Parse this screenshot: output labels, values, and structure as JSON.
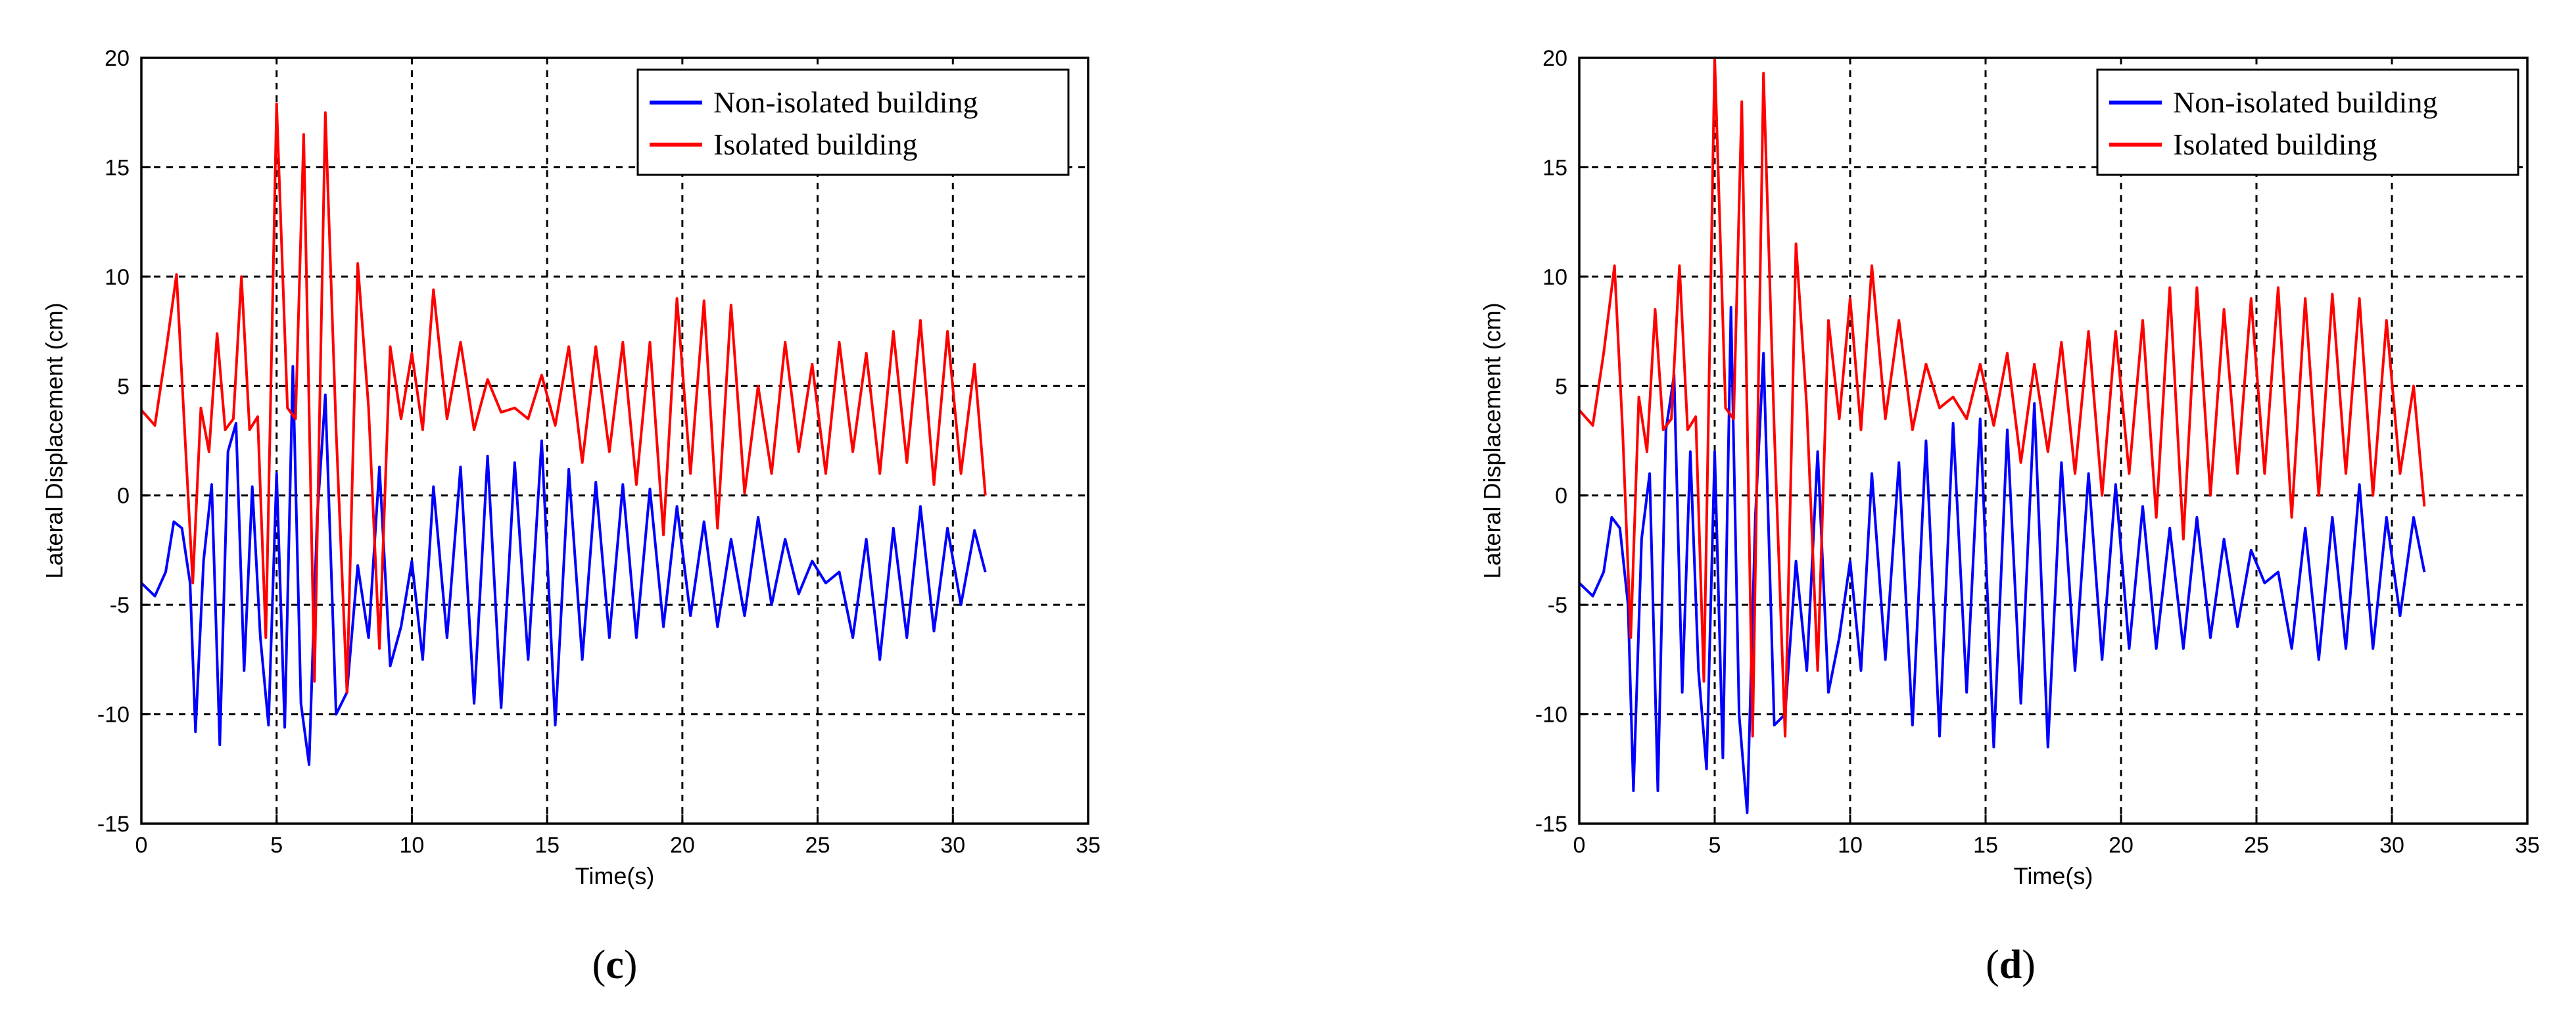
{
  "chart_data": [
    {
      "type": "line",
      "panel_label": {
        "open": "(",
        "letter": "c",
        "close": ")"
      },
      "xlabel": "Time(s)",
      "ylabel": "Lateral Displacement (cm)",
      "xlim": [
        0,
        35
      ],
      "ylim": [
        -15,
        20
      ],
      "xticks": [
        0,
        5,
        10,
        15,
        20,
        25,
        30,
        35
      ],
      "yticks": [
        -15,
        -10,
        -5,
        0,
        5,
        10,
        15,
        20
      ],
      "grid": true,
      "legend_position": "top-right",
      "colors": {
        "non_isolated": "#0000ff",
        "isolated": "#ff0000"
      },
      "series": [
        {
          "name": "Non-isolated building",
          "color": "#0000ff",
          "x": [
            0,
            0.5,
            0.9,
            1.2,
            1.5,
            1.8,
            2.0,
            2.3,
            2.6,
            2.9,
            3.2,
            3.5,
            3.8,
            4.1,
            4.4,
            4.7,
            5.0,
            5.3,
            5.6,
            5.9,
            6.2,
            6.5,
            6.8,
            7.2,
            7.6,
            8.0,
            8.4,
            8.8,
            9.2,
            9.6,
            10.0,
            10.4,
            10.8,
            11.3,
            11.8,
            12.3,
            12.8,
            13.3,
            13.8,
            14.3,
            14.8,
            15.3,
            15.8,
            16.3,
            16.8,
            17.3,
            17.8,
            18.3,
            18.8,
            19.3,
            19.8,
            20.3,
            20.8,
            21.3,
            21.8,
            22.3,
            22.8,
            23.3,
            23.8,
            24.3,
            24.8,
            25.3,
            25.8,
            26.3,
            26.8,
            27.3,
            27.8,
            28.3,
            28.8,
            29.3,
            29.8,
            30.3,
            30.8,
            31.2
          ],
          "y": [
            -4,
            -4.6,
            -3.5,
            -1.2,
            -1.5,
            -4,
            -10.8,
            -3,
            0.5,
            -11.4,
            2,
            3.3,
            -8,
            0.4,
            -6.5,
            -10.5,
            1,
            -10.6,
            5.9,
            -9.5,
            -12.3,
            -1,
            4.6,
            -10,
            -9,
            -3.2,
            -6.5,
            1.3,
            -7.8,
            -6,
            -3,
            -7.5,
            0.4,
            -6.5,
            1.3,
            -9.5,
            1.8,
            -9.7,
            1.5,
            -7.5,
            2.5,
            -10.5,
            1.2,
            -7.5,
            0.6,
            -6.5,
            0.5,
            -6.5,
            0.3,
            -6,
            -0.5,
            -5.5,
            -1.2,
            -6,
            -2,
            -5.5,
            -1,
            -5,
            -2,
            -4.5,
            -3,
            -4,
            -3.5,
            -6.5,
            -2,
            -7.5,
            -1.5,
            -6.5,
            -0.5,
            -6.2,
            -1.5,
            -5,
            -1.6,
            -3.5
          ]
        },
        {
          "name": "Isolated building",
          "color": "#ff0000",
          "x": [
            0,
            0.5,
            0.9,
            1.3,
            1.6,
            1.9,
            2.2,
            2.5,
            2.8,
            3.1,
            3.4,
            3.7,
            4.0,
            4.3,
            4.6,
            5.0,
            5.4,
            5.7,
            6.0,
            6.4,
            6.8,
            7.2,
            7.6,
            8.0,
            8.4,
            8.8,
            9.2,
            9.6,
            10.0,
            10.4,
            10.8,
            11.3,
            11.8,
            12.3,
            12.8,
            13.3,
            13.8,
            14.3,
            14.8,
            15.3,
            15.8,
            16.3,
            16.8,
            17.3,
            17.8,
            18.3,
            18.8,
            19.3,
            19.8,
            20.3,
            20.8,
            21.3,
            21.8,
            22.3,
            22.8,
            23.3,
            23.8,
            24.3,
            24.8,
            25.3,
            25.8,
            26.3,
            26.8,
            27.3,
            27.8,
            28.3,
            28.8,
            29.3,
            29.8,
            30.3,
            30.8,
            31.2
          ],
          "y": [
            3.9,
            3.2,
            6.5,
            10.1,
            3,
            -4,
            4,
            2,
            7.4,
            3,
            3.5,
            10,
            3,
            3.6,
            -6.5,
            17.9,
            4,
            3.5,
            16.5,
            -8.5,
            17.5,
            3,
            -9,
            10.6,
            4,
            -7,
            6.8,
            3.5,
            6.5,
            3,
            9.4,
            3.5,
            7,
            3,
            5.3,
            3.8,
            4,
            3.5,
            5.5,
            3.2,
            6.8,
            1.5,
            6.8,
            2,
            7,
            0.5,
            7,
            -1.8,
            9,
            1,
            8.9,
            -1.5,
            8.7,
            0.1,
            5,
            1,
            7,
            2,
            6,
            1,
            7,
            2,
            6.5,
            1,
            7.5,
            1.5,
            8,
            0.5,
            7.5,
            1,
            6,
            0
          ]
        }
      ]
    },
    {
      "type": "line",
      "panel_label": {
        "open": "(",
        "letter": "d",
        "close": ")"
      },
      "xlabel": "Time(s)",
      "ylabel": "Lateral Displacement (cm)",
      "xlim": [
        0,
        35
      ],
      "ylim": [
        -15,
        20
      ],
      "xticks": [
        0,
        5,
        10,
        15,
        20,
        25,
        30,
        35
      ],
      "yticks": [
        -15,
        -10,
        -5,
        0,
        5,
        10,
        15,
        20
      ],
      "grid": true,
      "legend_position": "top-right",
      "colors": {
        "non_isolated": "#0000ff",
        "isolated": "#ff0000"
      },
      "series": [
        {
          "name": "Non-isolated building",
          "color": "#0000ff",
          "x": [
            0,
            0.5,
            0.9,
            1.2,
            1.5,
            1.8,
            2.0,
            2.3,
            2.6,
            2.9,
            3.2,
            3.5,
            3.8,
            4.1,
            4.4,
            4.7,
            5.0,
            5.3,
            5.6,
            5.9,
            6.2,
            6.5,
            6.8,
            7.2,
            7.6,
            8.0,
            8.4,
            8.8,
            9.2,
            9.6,
            10.0,
            10.4,
            10.8,
            11.3,
            11.8,
            12.3,
            12.8,
            13.3,
            13.8,
            14.3,
            14.8,
            15.3,
            15.8,
            16.3,
            16.8,
            17.3,
            17.8,
            18.3,
            18.8,
            19.3,
            19.8,
            20.3,
            20.8,
            21.3,
            21.8,
            22.3,
            22.8,
            23.3,
            23.8,
            24.3,
            24.8,
            25.3,
            25.8,
            26.3,
            26.8,
            27.3,
            27.8,
            28.3,
            28.8,
            29.3,
            29.8,
            30.3,
            30.8,
            31.2
          ],
          "y": [
            -4,
            -4.6,
            -3.5,
            -1,
            -1.5,
            -5,
            -13.5,
            -2,
            1,
            -13.5,
            3,
            5.5,
            -9,
            2,
            -8,
            -12.5,
            2,
            -12,
            8.6,
            -10,
            -14.5,
            -1,
            6.5,
            -10.5,
            -10,
            -3,
            -8,
            2,
            -9,
            -6.5,
            -3,
            -8,
            1,
            -7.5,
            1.5,
            -10.5,
            2.5,
            -11,
            3.3,
            -9,
            3.5,
            -11.5,
            3,
            -9.5,
            4.2,
            -11.5,
            1.5,
            -8,
            1,
            -7.5,
            0.5,
            -7,
            -0.5,
            -7,
            -1.5,
            -7,
            -1,
            -6.5,
            -2,
            -6,
            -2.5,
            -4,
            -3.5,
            -7,
            -1.5,
            -7.5,
            -1,
            -7,
            0.5,
            -7,
            -1,
            -5.5,
            -1,
            -3.5
          ]
        },
        {
          "name": "Isolated building",
          "color": "#ff0000",
          "x": [
            0,
            0.5,
            0.9,
            1.3,
            1.6,
            1.9,
            2.2,
            2.5,
            2.8,
            3.1,
            3.4,
            3.7,
            4.0,
            4.3,
            4.6,
            5.0,
            5.4,
            5.7,
            6.0,
            6.4,
            6.8,
            7.2,
            7.6,
            8.0,
            8.4,
            8.8,
            9.2,
            9.6,
            10.0,
            10.4,
            10.8,
            11.3,
            11.8,
            12.3,
            12.8,
            13.3,
            13.8,
            14.3,
            14.8,
            15.3,
            15.8,
            16.3,
            16.8,
            17.3,
            17.8,
            18.3,
            18.8,
            19.3,
            19.8,
            20.3,
            20.8,
            21.3,
            21.8,
            22.3,
            22.8,
            23.3,
            23.8,
            24.3,
            24.8,
            25.3,
            25.8,
            26.3,
            26.8,
            27.3,
            27.8,
            28.3,
            28.8,
            29.3,
            29.8,
            30.3,
            30.8,
            31.2
          ],
          "y": [
            3.9,
            3.2,
            6.5,
            10.5,
            3,
            -6.5,
            4.5,
            2,
            8.5,
            3,
            3.5,
            10.5,
            3,
            3.6,
            -8.5,
            20,
            4,
            3.5,
            18,
            -11,
            19.3,
            3,
            -11,
            11.5,
            4,
            -8,
            8,
            3.5,
            9,
            3,
            10.5,
            3.5,
            8,
            3,
            6,
            4,
            4.5,
            3.5,
            6,
            3.2,
            6.5,
            1.5,
            6,
            2,
            7,
            1,
            7.5,
            0,
            7.5,
            1,
            8,
            -1,
            9.5,
            -2,
            9.5,
            0,
            8.5,
            1,
            9,
            1,
            9.5,
            -1,
            9,
            0,
            9.2,
            1,
            9,
            0,
            8,
            1,
            5,
            -0.5
          ]
        }
      ]
    }
  ]
}
